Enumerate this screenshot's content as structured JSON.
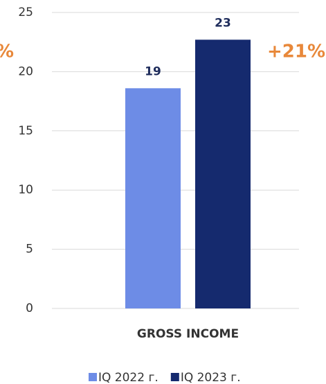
{
  "chart_data": {
    "type": "bar",
    "categories": [
      "GROSS INCOME"
    ],
    "series": [
      {
        "name": "IQ 2022 г.",
        "color": "#6d8ce6",
        "values": [
          18.6
        ],
        "value_labels": [
          "19"
        ]
      },
      {
        "name": "IQ 2023 г.",
        "color": "#152a6e",
        "values": [
          22.7
        ],
        "value_labels": [
          "23"
        ]
      }
    ],
    "ylim": [
      0,
      25
    ],
    "yticks": [
      0,
      5,
      10,
      15,
      20,
      25
    ],
    "grid": true,
    "annotations": [
      "%",
      "+21%"
    ],
    "legend": "bottom"
  }
}
